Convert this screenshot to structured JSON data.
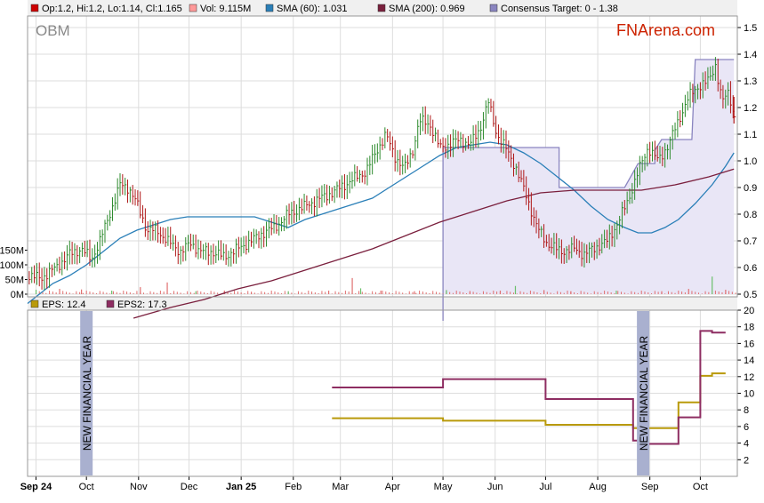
{
  "ticker": "OBM",
  "brand": "FNArena.com",
  "colors": {
    "bar": "#2f7d32",
    "sma60": "#2a7fb8",
    "sma200": "#7a1f3d",
    "target_fill": "#e9e6f6",
    "target_line": "#8a85c0",
    "eps": "#b99a0a",
    "eps2": "#8e2d62",
    "band": "#a9b0cf",
    "volume": "#e07070",
    "grid": "#dddddd",
    "axis": "#000000"
  },
  "legend_top": [
    {
      "label": "Op:1.2, Hi:1.2, Lo:1.14, Cl:1.165",
      "color": "#cc0000"
    },
    {
      "label": "Vol: 9.115M",
      "color": "#ff9999"
    },
    {
      "label": "SMA (60): 1.031",
      "color": "#2a7fb8"
    },
    {
      "label": "SMA (200): 0.969",
      "color": "#7a1f3d"
    },
    {
      "label": "Consensus Target: 0 - 1.38",
      "color": "#8a85c0"
    }
  ],
  "legend_bottom": [
    {
      "label": "EPS: 12.4",
      "color": "#b99a0a"
    },
    {
      "label": "EPS2: 17.3",
      "color": "#8e2d62"
    }
  ],
  "band_label": "NEW FINANCIAL YEAR",
  "chart_data": [
    {
      "type": "line",
      "panel": "price",
      "ticker": "OBM",
      "y_ticks": [
        "1.5",
        "1.4",
        "1.3",
        "1.2",
        "1.1",
        "1.0",
        "0.9",
        "0.8",
        "0.7",
        "0.6",
        "0.5"
      ],
      "ylim": [
        0.5,
        1.5
      ],
      "volume_ticks": [
        "150M",
        "100M",
        "50M",
        "0M"
      ],
      "x_tick_labels": [
        "Sep 24",
        "Oct",
        "Nov",
        "Dec",
        "Jan 25",
        "Feb",
        "Mar",
        "Apr",
        "May",
        "Jun",
        "Jul",
        "Aug",
        "Sep",
        "Oct"
      ],
      "x_tick_days": [
        0,
        30,
        61,
        91,
        122,
        153,
        181,
        212,
        242,
        273,
        303,
        334,
        365,
        395
      ],
      "x_range_days": [
        -5,
        417
      ],
      "price_anchors": [
        [
          -5,
          0.57
        ],
        [
          3,
          0.56
        ],
        [
          12,
          0.6
        ],
        [
          20,
          0.65
        ],
        [
          27,
          0.67
        ],
        [
          33,
          0.63
        ],
        [
          38,
          0.7
        ],
        [
          45,
          0.82
        ],
        [
          50,
          0.91
        ],
        [
          55,
          0.9
        ],
        [
          60,
          0.84
        ],
        [
          66,
          0.74
        ],
        [
          72,
          0.74
        ],
        [
          78,
          0.7
        ],
        [
          86,
          0.66
        ],
        [
          92,
          0.69
        ],
        [
          98,
          0.66
        ],
        [
          104,
          0.66
        ],
        [
          112,
          0.64
        ],
        [
          120,
          0.67
        ],
        [
          128,
          0.7
        ],
        [
          135,
          0.73
        ],
        [
          142,
          0.75
        ],
        [
          150,
          0.8
        ],
        [
          157,
          0.82
        ],
        [
          166,
          0.85
        ],
        [
          176,
          0.88
        ],
        [
          186,
          0.92
        ],
        [
          196,
          0.96
        ],
        [
          202,
          1.03
        ],
        [
          208,
          1.1
        ],
        [
          213,
          1.02
        ],
        [
          219,
          0.97
        ],
        [
          224,
          1.04
        ],
        [
          228,
          1.15
        ],
        [
          234,
          1.14
        ],
        [
          240,
          1.05
        ],
        [
          245,
          1.06
        ],
        [
          252,
          1.08
        ],
        [
          258,
          1.06
        ],
        [
          264,
          1.12
        ],
        [
          269,
          1.22
        ],
        [
          274,
          1.1
        ],
        [
          279,
          1.05
        ],
        [
          285,
          0.98
        ],
        [
          292,
          0.86
        ],
        [
          298,
          0.75
        ],
        [
          304,
          0.69
        ],
        [
          312,
          0.66
        ],
        [
          320,
          0.67
        ],
        [
          326,
          0.65
        ],
        [
          334,
          0.68
        ],
        [
          340,
          0.7
        ],
        [
          346,
          0.77
        ],
        [
          352,
          0.85
        ],
        [
          358,
          0.96
        ],
        [
          364,
          1.05
        ],
        [
          370,
          1.0
        ],
        [
          376,
          1.06
        ],
        [
          382,
          1.15
        ],
        [
          388,
          1.24
        ],
        [
          394,
          1.28
        ],
        [
          400,
          1.3
        ],
        [
          404,
          1.36
        ],
        [
          408,
          1.22
        ],
        [
          412,
          1.26
        ],
        [
          415,
          1.17
        ]
      ],
      "ohlc_last": {
        "open": 1.2,
        "high": 1.2,
        "low": 1.14,
        "close": 1.165
      },
      "sma60": [
        [
          -5,
          0.465
        ],
        [
          10,
          0.54
        ],
        [
          20,
          0.57
        ],
        [
          30,
          0.61
        ],
        [
          40,
          0.66
        ],
        [
          50,
          0.71
        ],
        [
          60,
          0.74
        ],
        [
          70,
          0.76
        ],
        [
          80,
          0.78
        ],
        [
          90,
          0.79
        ],
        [
          100,
          0.79
        ],
        [
          110,
          0.79
        ],
        [
          120,
          0.79
        ],
        [
          130,
          0.79
        ],
        [
          140,
          0.77
        ],
        [
          150,
          0.75
        ],
        [
          160,
          0.78
        ],
        [
          170,
          0.8
        ],
        [
          180,
          0.82
        ],
        [
          190,
          0.84
        ],
        [
          200,
          0.86
        ],
        [
          210,
          0.9
        ],
        [
          220,
          0.94
        ],
        [
          230,
          0.98
        ],
        [
          240,
          1.02
        ],
        [
          250,
          1.05
        ],
        [
          260,
          1.06
        ],
        [
          270,
          1.07
        ],
        [
          280,
          1.06
        ],
        [
          290,
          1.03
        ],
        [
          300,
          0.99
        ],
        [
          310,
          0.94
        ],
        [
          320,
          0.89
        ],
        [
          330,
          0.83
        ],
        [
          340,
          0.78
        ],
        [
          350,
          0.75
        ],
        [
          358,
          0.73
        ],
        [
          366,
          0.73
        ],
        [
          374,
          0.75
        ],
        [
          382,
          0.78
        ],
        [
          392,
          0.84
        ],
        [
          402,
          0.91
        ],
        [
          410,
          0.98
        ],
        [
          415,
          1.03
        ]
      ],
      "sma200": [
        [
          58,
          0.41
        ],
        [
          80,
          0.45
        ],
        [
          100,
          0.48
        ],
        [
          120,
          0.52
        ],
        [
          140,
          0.55
        ],
        [
          160,
          0.59
        ],
        [
          180,
          0.63
        ],
        [
          200,
          0.67
        ],
        [
          220,
          0.72
        ],
        [
          240,
          0.77
        ],
        [
          260,
          0.81
        ],
        [
          280,
          0.85
        ],
        [
          300,
          0.88
        ],
        [
          320,
          0.89
        ],
        [
          340,
          0.89
        ],
        [
          360,
          0.89
        ],
        [
          380,
          0.91
        ],
        [
          400,
          0.94
        ],
        [
          415,
          0.969
        ]
      ],
      "consensus_target": [
        [
          242,
          0.4
        ],
        [
          242,
          1.05
        ],
        [
          311,
          1.05
        ],
        [
          311,
          0.9
        ],
        [
          350,
          0.9
        ],
        [
          358,
          0.99
        ],
        [
          368,
          0.99
        ],
        [
          368,
          1.04
        ],
        [
          372,
          1.08
        ],
        [
          390,
          1.08
        ],
        [
          392,
          1.38
        ],
        [
          415,
          1.38
        ]
      ],
      "volume_bars_M": [
        [
          0,
          15
        ],
        [
          14,
          18
        ],
        [
          27,
          16
        ],
        [
          45,
          12
        ],
        [
          62,
          24
        ],
        [
          78,
          40
        ],
        [
          95,
          10
        ],
        [
          112,
          12
        ],
        [
          128,
          8
        ],
        [
          150,
          10
        ],
        [
          174,
          12
        ],
        [
          188,
          55
        ],
        [
          193,
          20
        ],
        [
          205,
          12
        ],
        [
          225,
          10
        ],
        [
          244,
          14
        ],
        [
          258,
          8
        ],
        [
          276,
          12
        ],
        [
          285,
          28
        ],
        [
          302,
          14
        ],
        [
          318,
          10
        ],
        [
          345,
          12
        ],
        [
          372,
          10
        ],
        [
          388,
          18
        ],
        [
          402,
          60
        ],
        [
          410,
          15
        ]
      ]
    },
    {
      "type": "line",
      "panel": "eps",
      "y_ticks": [
        "20",
        "18",
        "16",
        "14",
        "12",
        "10",
        "8",
        "6",
        "4",
        "2"
      ],
      "ylim": [
        0,
        20
      ],
      "series": [
        {
          "name": "EPS",
          "points": [
            [
              176,
              7
            ],
            [
              242,
              7
            ],
            [
              242,
              6.7
            ],
            [
              303,
              6.7
            ],
            [
              303,
              6.2
            ],
            [
              355,
              6.2
            ],
            [
              355,
              5.8
            ],
            [
              382,
              5.8
            ],
            [
              382,
              8.9
            ],
            [
              395,
              8.9
            ],
            [
              395,
              12.1
            ],
            [
              402,
              12.1
            ],
            [
              402,
              12.4
            ],
            [
              410,
              12.4
            ]
          ]
        },
        {
          "name": "EPS2",
          "points": [
            [
              176,
              10.7
            ],
            [
              242,
              10.7
            ],
            [
              242,
              11.7
            ],
            [
              303,
              11.7
            ],
            [
              303,
              9.3
            ],
            [
              355,
              9.3
            ],
            [
              355,
              4.3
            ],
            [
              364,
              4.3
            ],
            [
              364,
              3.9
            ],
            [
              382,
              3.9
            ],
            [
              382,
              7.1
            ],
            [
              395,
              7.1
            ],
            [
              395,
              17.5
            ],
            [
              402,
              17.5
            ],
            [
              402,
              17.3
            ],
            [
              410,
              17.3
            ]
          ]
        }
      ],
      "bands": [
        {
          "day": 30
        },
        {
          "day": 361
        }
      ]
    }
  ]
}
